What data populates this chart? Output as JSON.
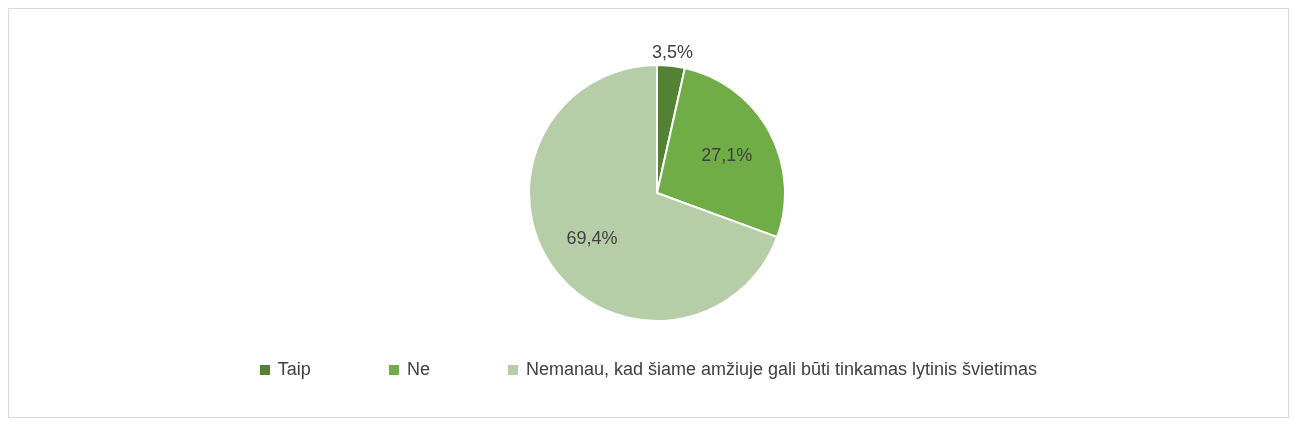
{
  "chart_data": {
    "type": "pie",
    "categories": [
      "Taip",
      "Ne",
      "Nemanau, kad šiame amžiuje gali būti tinkamas lytinis švietimas"
    ],
    "values": [
      3.5,
      27.1,
      69.4
    ],
    "colors": [
      "#548235",
      "#70ad47",
      "#b5cea8"
    ],
    "value_labels": [
      "3,5%",
      "27,1%",
      "69,4%"
    ],
    "legend": "bottom"
  }
}
